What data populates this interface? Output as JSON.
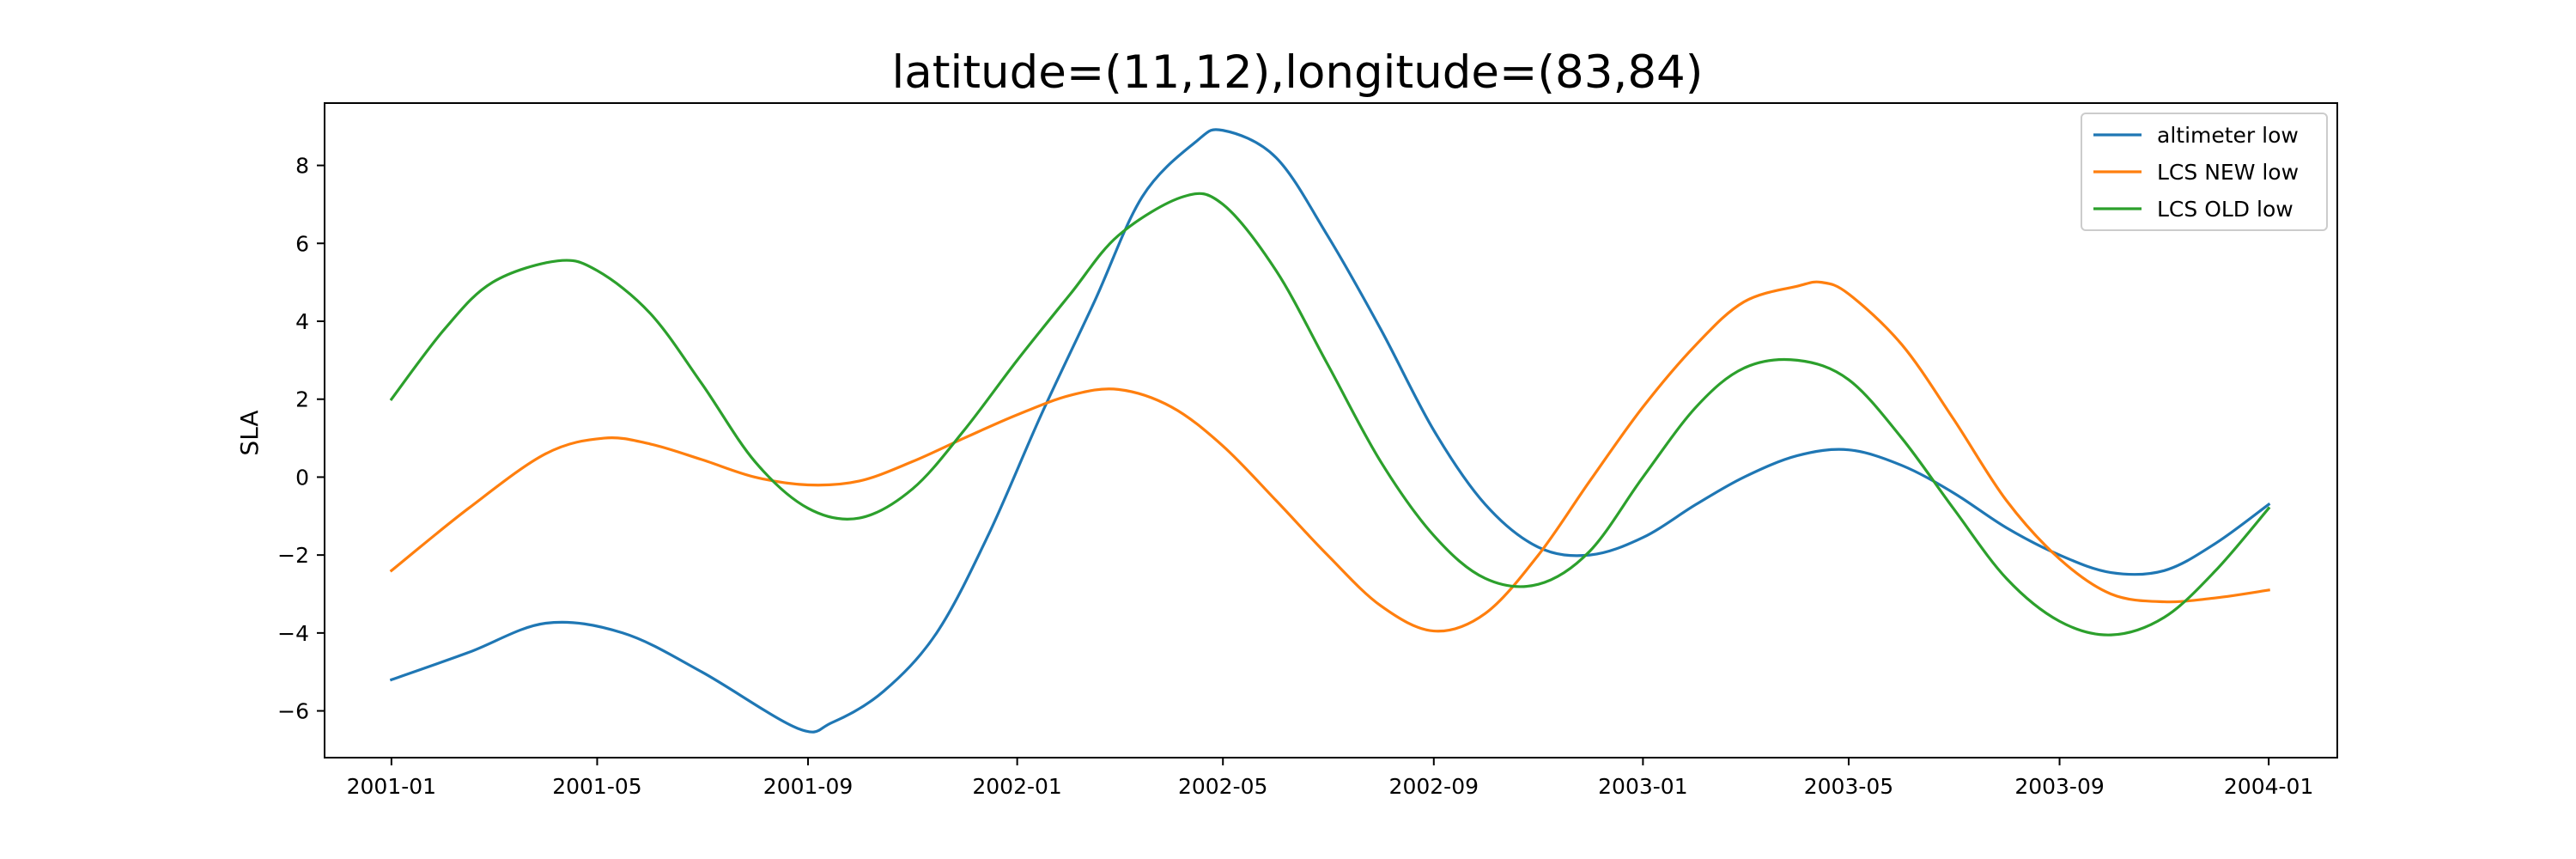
{
  "chart_data": {
    "type": "line",
    "title": "latitude=(11,12),longitude=(83,84)",
    "xlabel": "",
    "ylabel": "SLA",
    "xlim": [
      "2000-11-23",
      "2004-02-10"
    ],
    "ylim": [
      -7.2,
      9.6
    ],
    "x_ticks": [
      "2001-01",
      "2001-05",
      "2001-09",
      "2002-01",
      "2002-05",
      "2002-09",
      "2003-01",
      "2003-05",
      "2003-09",
      "2004-01"
    ],
    "y_ticks": [
      -6,
      -4,
      -2,
      0,
      2,
      4,
      6,
      8
    ],
    "legend_position": "top-right",
    "grid": false,
    "series": [
      {
        "name": "altimeter low",
        "color": "#1f77b4",
        "x": [
          "2001-01-01",
          "2001-02-15",
          "2001-04-01",
          "2001-05-16",
          "2001-07-01",
          "2001-08-26",
          "2001-09-15",
          "2001-10-15",
          "2001-11-15",
          "2001-12-15",
          "2002-01-15",
          "2002-02-15",
          "2002-03-15",
          "2002-04-15",
          "2002-05-01",
          "2002-06-01",
          "2002-07-01",
          "2002-08-01",
          "2002-09-01",
          "2002-10-01",
          "2002-11-01",
          "2002-12-01",
          "2003-01-01",
          "2003-02-01",
          "2003-03-01",
          "2003-04-01",
          "2003-05-01",
          "2003-06-01",
          "2003-07-01",
          "2003-08-01",
          "2003-09-01",
          "2003-10-01",
          "2003-11-01",
          "2003-12-01",
          "2004-01-01"
        ],
        "y": [
          -5.2,
          -4.5,
          -3.75,
          -4.0,
          -5.0,
          -6.45,
          -6.3,
          -5.5,
          -4.0,
          -1.5,
          1.6,
          4.5,
          7.2,
          8.6,
          8.9,
          8.2,
          6.2,
          3.8,
          1.2,
          -0.7,
          -1.8,
          -2.0,
          -1.55,
          -0.7,
          0.0,
          0.55,
          0.7,
          0.3,
          -0.4,
          -1.3,
          -2.0,
          -2.45,
          -2.4,
          -1.7,
          -0.7
        ]
      },
      {
        "name": "LCS NEW low",
        "color": "#ff7f0e",
        "x": [
          "2001-01-01",
          "2001-02-15",
          "2001-04-01",
          "2001-05-05",
          "2001-06-01",
          "2001-07-01",
          "2001-08-01",
          "2001-09-01",
          "2001-10-01",
          "2001-11-01",
          "2001-12-01",
          "2002-01-01",
          "2002-02-01",
          "2002-03-01",
          "2002-04-01",
          "2002-05-01",
          "2002-06-01",
          "2002-07-01",
          "2002-08-01",
          "2002-09-01",
          "2002-10-01",
          "2002-11-01",
          "2002-12-01",
          "2003-01-01",
          "2003-02-01",
          "2003-03-01",
          "2003-04-01",
          "2003-04-15",
          "2003-05-01",
          "2003-06-01",
          "2003-07-01",
          "2003-08-01",
          "2003-09-01",
          "2003-10-01",
          "2003-11-01",
          "2003-12-01",
          "2004-01-01"
        ],
        "y": [
          -2.4,
          -0.8,
          0.6,
          1.0,
          0.85,
          0.45,
          0.0,
          -0.2,
          -0.1,
          0.4,
          1.0,
          1.6,
          2.1,
          2.25,
          1.8,
          0.8,
          -0.6,
          -2.0,
          -3.3,
          -3.95,
          -3.5,
          -2.0,
          -0.1,
          1.8,
          3.4,
          4.5,
          4.9,
          5.0,
          4.7,
          3.4,
          1.5,
          -0.6,
          -2.1,
          -3.0,
          -3.2,
          -3.1,
          -2.9
        ]
      },
      {
        "name": "LCS OLD low",
        "color": "#2ca02c",
        "x": [
          "2001-01-01",
          "2001-02-01",
          "2001-03-01",
          "2001-04-08",
          "2001-05-01",
          "2001-06-01",
          "2001-07-01",
          "2001-08-01",
          "2001-09-01",
          "2001-10-01",
          "2001-11-01",
          "2001-12-01",
          "2002-01-01",
          "2002-02-01",
          "2002-03-01",
          "2002-04-08",
          "2002-05-01",
          "2002-06-01",
          "2002-07-01",
          "2002-08-01",
          "2002-09-01",
          "2002-10-01",
          "2002-11-01",
          "2002-12-01",
          "2003-01-01",
          "2003-02-01",
          "2003-03-01",
          "2003-04-01",
          "2003-05-01",
          "2003-06-01",
          "2003-07-01",
          "2003-08-01",
          "2003-09-01",
          "2003-10-01",
          "2003-11-01",
          "2003-12-01",
          "2004-01-01"
        ],
        "y": [
          2.0,
          3.8,
          5.0,
          5.55,
          5.3,
          4.2,
          2.4,
          0.4,
          -0.8,
          -1.05,
          -0.3,
          1.2,
          3.0,
          4.7,
          6.2,
          7.2,
          7.0,
          5.3,
          2.9,
          0.4,
          -1.5,
          -2.6,
          -2.75,
          -1.9,
          0.0,
          1.8,
          2.8,
          3.0,
          2.5,
          1.0,
          -0.8,
          -2.6,
          -3.7,
          -4.05,
          -3.6,
          -2.4,
          -0.8
        ]
      }
    ]
  }
}
